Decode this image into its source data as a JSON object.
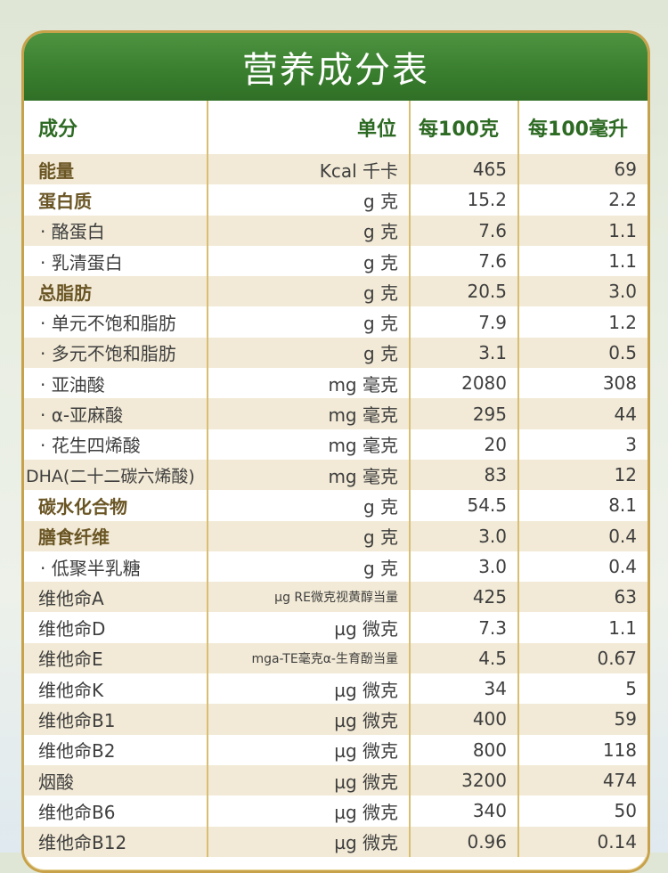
{
  "title": "营养成分表",
  "columns": {
    "name": "成分",
    "unit": "单位",
    "per100g": "每100克",
    "per100ml": "每100毫升"
  },
  "rows": [
    {
      "name": "能量",
      "unit": "Kcal 千卡",
      "per100g": "465",
      "per100ml": "69",
      "style": "bold"
    },
    {
      "name": "蛋白质",
      "unit": "g 克",
      "per100g": "15.2",
      "per100ml": "2.2",
      "style": "bold"
    },
    {
      "name": "· 酪蛋白",
      "unit": "g 克",
      "per100g": "7.6",
      "per100ml": "1.1",
      "style": "sub"
    },
    {
      "name": "· 乳清蛋白",
      "unit": "g 克",
      "per100g": "7.6",
      "per100ml": "1.1",
      "style": "sub"
    },
    {
      "name": "总脂肪",
      "unit": "g 克",
      "per100g": "20.5",
      "per100ml": "3.0",
      "style": "bold"
    },
    {
      "name": "· 单元不饱和脂肪",
      "unit": "g 克",
      "per100g": "7.9",
      "per100ml": "1.2",
      "style": "sub"
    },
    {
      "name": "· 多元不饱和脂肪",
      "unit": "g 克",
      "per100g": "3.1",
      "per100ml": "0.5",
      "style": "sub"
    },
    {
      "name": "· 亚油酸",
      "unit": "mg 毫克",
      "per100g": "2080",
      "per100ml": "308",
      "style": "sub"
    },
    {
      "name": "· α-亚麻酸",
      "unit": "mg 毫克",
      "per100g": "295",
      "per100ml": "44",
      "style": "sub"
    },
    {
      "name": "· 花生四烯酸",
      "unit": "mg 毫克",
      "per100g": "20",
      "per100ml": "3",
      "style": "sub"
    },
    {
      "name": "DHA(二十二碳六烯酸)",
      "unit": "mg 毫克",
      "per100g": "83",
      "per100ml": "12",
      "style": "dha"
    },
    {
      "name": "碳水化合物",
      "unit": "g 克",
      "per100g": "54.5",
      "per100ml": "8.1",
      "style": "bold"
    },
    {
      "name": "膳食纤维",
      "unit": "g 克",
      "per100g": "3.0",
      "per100ml": "0.4",
      "style": "bold"
    },
    {
      "name": "· 低聚半乳糖",
      "unit": "g 克",
      "per100g": "3.0",
      "per100ml": "0.4",
      "style": "sub"
    },
    {
      "name": "维他命A",
      "unit": "µg RE微克视黄醇当量",
      "per100g": "425",
      "per100ml": "63",
      "style": "plain",
      "unit_small": true
    },
    {
      "name": "维他命D",
      "unit": "µg 微克",
      "per100g": "7.3",
      "per100ml": "1.1",
      "style": "plain"
    },
    {
      "name": "维他命E",
      "unit": "mga-TE毫克α-生育酚当量",
      "per100g": "4.5",
      "per100ml": "0.67",
      "style": "plain",
      "unit_small": true
    },
    {
      "name": "维他命K",
      "unit": "µg 微克",
      "per100g": "34",
      "per100ml": "5",
      "style": "plain"
    },
    {
      "name": "维他命B1",
      "unit": "µg 微克",
      "per100g": "400",
      "per100ml": "59",
      "style": "plain"
    },
    {
      "name": "维他命B2",
      "unit": "µg 微克",
      "per100g": "800",
      "per100ml": "118",
      "style": "plain"
    },
    {
      "name": "烟酸",
      "unit": "µg 微克",
      "per100g": "3200",
      "per100ml": "474",
      "style": "plain"
    },
    {
      "name": "维他命B6",
      "unit": "µg 微克",
      "per100g": "340",
      "per100ml": "50",
      "style": "plain"
    },
    {
      "name": "维他命B12",
      "unit": "µg 微克",
      "per100g": "0.96",
      "per100ml": "0.14",
      "style": "plain"
    }
  ]
}
